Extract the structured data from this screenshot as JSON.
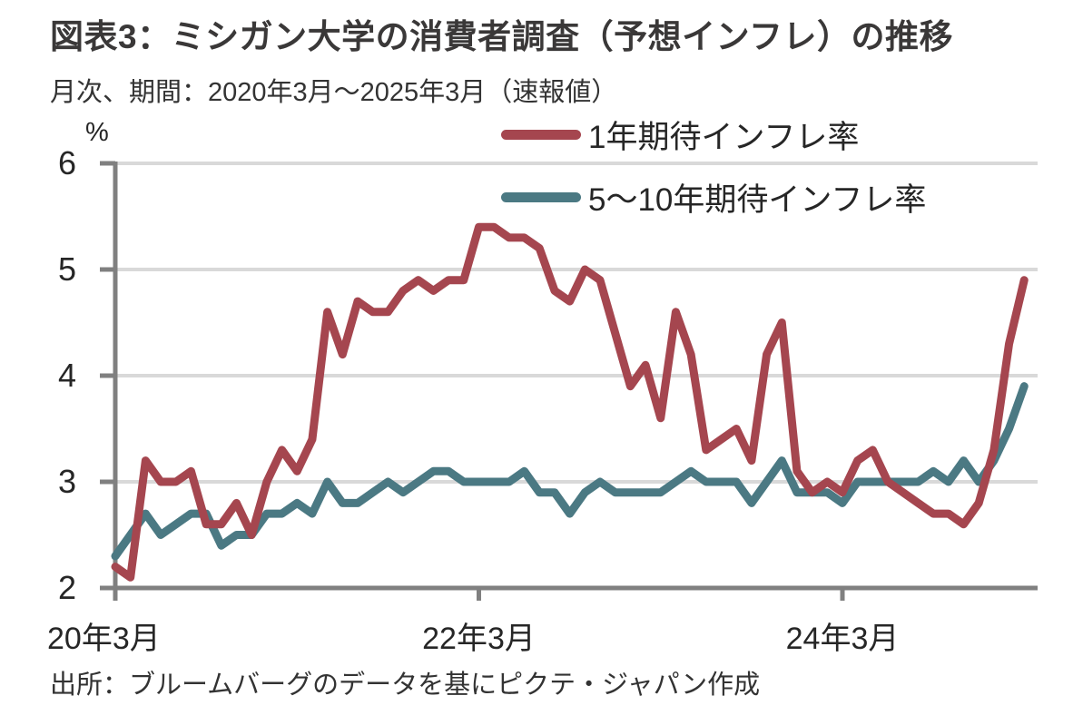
{
  "source": "出所：ブルームバーグのデータを基にピクテ・ジャパン作成",
  "chart_data": {
    "type": "line",
    "title": "図表3：ミシガン大学の消費者調査（予想インフレ）の推移",
    "subtitle": "月次、期間：2020年3月～2025年3月（速報値）",
    "unit_label": "%",
    "frequency": "monthly",
    "period": {
      "start": "2020年3月",
      "end": "2025年3月"
    },
    "ylim": [
      2,
      6
    ],
    "y_ticks": [
      2,
      3,
      4,
      5,
      6
    ],
    "x_tick_labels": [
      "20年3月",
      "22年3月",
      "24年3月"
    ],
    "x_tick_month_indices": [
      0,
      24,
      48
    ],
    "grid": "horizontal",
    "legend_position": "top-inside",
    "gridline_color": "#d9d9d9",
    "axis_color": "#808080",
    "series": [
      {
        "name": "1年期待インフレ率",
        "color": "#a5464f",
        "values": [
          2.2,
          2.1,
          3.2,
          3.0,
          3.0,
          3.1,
          2.6,
          2.6,
          2.8,
          2.5,
          3.0,
          3.3,
          3.1,
          3.4,
          4.6,
          4.2,
          4.7,
          4.6,
          4.6,
          4.8,
          4.9,
          4.8,
          4.9,
          4.9,
          5.4,
          5.4,
          5.3,
          5.3,
          5.2,
          4.8,
          4.7,
          5.0,
          4.9,
          4.4,
          3.9,
          4.1,
          3.6,
          4.6,
          4.2,
          3.3,
          3.4,
          3.5,
          3.2,
          4.2,
          4.5,
          3.1,
          2.9,
          3.0,
          2.9,
          3.2,
          3.3,
          3.0,
          2.9,
          2.8,
          2.7,
          2.7,
          2.6,
          2.8,
          3.3,
          4.3,
          4.9
        ]
      },
      {
        "name": "5～10年期待インフレ率",
        "color": "#4b7983",
        "values": [
          2.3,
          2.5,
          2.7,
          2.5,
          2.6,
          2.7,
          2.7,
          2.4,
          2.5,
          2.5,
          2.7,
          2.7,
          2.8,
          2.7,
          3.0,
          2.8,
          2.8,
          2.9,
          3.0,
          2.9,
          3.0,
          3.1,
          3.1,
          3.0,
          3.0,
          3.0,
          3.0,
          3.1,
          2.9,
          2.9,
          2.7,
          2.9,
          3.0,
          2.9,
          2.9,
          2.9,
          2.9,
          3.0,
          3.1,
          3.0,
          3.0,
          3.0,
          2.8,
          3.0,
          3.2,
          2.9,
          2.9,
          2.9,
          2.8,
          3.0,
          3.0,
          3.0,
          3.0,
          3.0,
          3.1,
          3.0,
          3.2,
          3.0,
          3.2,
          3.5,
          3.9
        ]
      }
    ]
  }
}
